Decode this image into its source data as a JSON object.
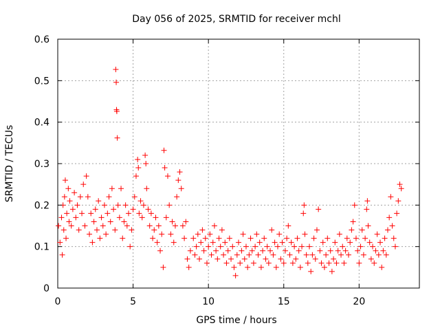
{
  "chart_data": {
    "type": "scatter",
    "title": "Day 056 of 2025, SRMTID for receiver mchl",
    "xlabel": "GPS time / hours",
    "ylabel": "SRMTID / TECUs",
    "xlim": [
      0,
      24
    ],
    "ylim": [
      0,
      0.6
    ],
    "x_ticks": [
      0,
      5,
      10,
      15,
      20
    ],
    "x_tick_labels": [
      "0",
      "5",
      "10",
      "15",
      "20"
    ],
    "y_ticks": [
      0,
      0.1,
      0.2,
      0.3,
      0.4,
      0.5,
      0.6
    ],
    "y_tick_labels": [
      "0",
      "0.1",
      "0.2",
      "0.3",
      "0.4",
      "0.5",
      "0.6"
    ],
    "grid": true,
    "marker": "+",
    "series": [
      {
        "name": "SRMTID",
        "color": "#ff0000",
        "points": [
          [
            0.05,
            0.15
          ],
          [
            0.15,
            0.11
          ],
          [
            0.25,
            0.17
          ],
          [
            0.3,
            0.08
          ],
          [
            0.35,
            0.2
          ],
          [
            0.4,
            0.14
          ],
          [
            0.45,
            0.22
          ],
          [
            0.5,
            0.26
          ],
          [
            0.55,
            0.12
          ],
          [
            0.6,
            0.18
          ],
          [
            0.7,
            0.24
          ],
          [
            0.75,
            0.16
          ],
          [
            0.8,
            0.21
          ],
          [
            0.9,
            0.15
          ],
          [
            1.0,
            0.19
          ],
          [
            1.1,
            0.23
          ],
          [
            1.2,
            0.17
          ],
          [
            1.3,
            0.2
          ],
          [
            1.4,
            0.14
          ],
          [
            1.5,
            0.22
          ],
          [
            1.6,
            0.18
          ],
          [
            1.7,
            0.25
          ],
          [
            1.8,
            0.15
          ],
          [
            1.9,
            0.27
          ],
          [
            2.0,
            0.22
          ],
          [
            2.1,
            0.13
          ],
          [
            2.2,
            0.18
          ],
          [
            2.3,
            0.11
          ],
          [
            2.4,
            0.16
          ],
          [
            2.5,
            0.19
          ],
          [
            2.6,
            0.14
          ],
          [
            2.7,
            0.21
          ],
          [
            2.8,
            0.12
          ],
          [
            2.9,
            0.17
          ],
          [
            3.0,
            0.15
          ],
          [
            3.1,
            0.2
          ],
          [
            3.2,
            0.13
          ],
          [
            3.3,
            0.18
          ],
          [
            3.4,
            0.22
          ],
          [
            3.5,
            0.16
          ],
          [
            3.6,
            0.24
          ],
          [
            3.7,
            0.19
          ],
          [
            3.8,
            0.14
          ],
          [
            3.85,
            0.527
          ],
          [
            3.88,
            0.496
          ],
          [
            3.9,
            0.43
          ],
          [
            3.92,
            0.426
          ],
          [
            3.95,
            0.362
          ],
          [
            4.0,
            0.2
          ],
          [
            4.1,
            0.17
          ],
          [
            4.2,
            0.24
          ],
          [
            4.3,
            0.12
          ],
          [
            4.4,
            0.16
          ],
          [
            4.5,
            0.2
          ],
          [
            4.6,
            0.15
          ],
          [
            4.7,
            0.18
          ],
          [
            4.8,
            0.1
          ],
          [
            4.9,
            0.14
          ],
          [
            5.0,
            0.19
          ],
          [
            5.1,
            0.22
          ],
          [
            5.2,
            0.27
          ],
          [
            5.3,
            0.31
          ],
          [
            5.35,
            0.29
          ],
          [
            5.4,
            0.18
          ],
          [
            5.5,
            0.21
          ],
          [
            5.6,
            0.17
          ],
          [
            5.7,
            0.2
          ],
          [
            5.8,
            0.32
          ],
          [
            5.85,
            0.3
          ],
          [
            5.9,
            0.24
          ],
          [
            6.0,
            0.19
          ],
          [
            6.1,
            0.15
          ],
          [
            6.2,
            0.18
          ],
          [
            6.3,
            0.12
          ],
          [
            6.4,
            0.14
          ],
          [
            6.5,
            0.17
          ],
          [
            6.6,
            0.11
          ],
          [
            6.7,
            0.15
          ],
          [
            6.8,
            0.09
          ],
          [
            6.9,
            0.13
          ],
          [
            7.0,
            0.05
          ],
          [
            7.05,
            0.332
          ],
          [
            7.1,
            0.29
          ],
          [
            7.2,
            0.17
          ],
          [
            7.3,
            0.27
          ],
          [
            7.4,
            0.2
          ],
          [
            7.5,
            0.13
          ],
          [
            7.6,
            0.16
          ],
          [
            7.7,
            0.11
          ],
          [
            7.8,
            0.15
          ],
          [
            7.9,
            0.22
          ],
          [
            8.0,
            0.26
          ],
          [
            8.1,
            0.28
          ],
          [
            8.2,
            0.24
          ],
          [
            8.3,
            0.15
          ],
          [
            8.4,
            0.12
          ],
          [
            8.5,
            0.16
          ],
          [
            8.6,
            0.07
          ],
          [
            8.7,
            0.05
          ],
          [
            8.8,
            0.09
          ],
          [
            9.0,
            0.12
          ],
          [
            9.1,
            0.08
          ],
          [
            9.2,
            0.1
          ],
          [
            9.3,
            0.13
          ],
          [
            9.4,
            0.07
          ],
          [
            9.5,
            0.11
          ],
          [
            9.6,
            0.14
          ],
          [
            9.7,
            0.09
          ],
          [
            9.8,
            0.12
          ],
          [
            9.9,
            0.06
          ],
          [
            10.0,
            0.1
          ],
          [
            10.1,
            0.13
          ],
          [
            10.2,
            0.08
          ],
          [
            10.3,
            0.11
          ],
          [
            10.4,
            0.15
          ],
          [
            10.5,
            0.09
          ],
          [
            10.6,
            0.07
          ],
          [
            10.7,
            0.12
          ],
          [
            10.8,
            0.1
          ],
          [
            10.9,
            0.14
          ],
          [
            11.0,
            0.08
          ],
          [
            11.1,
            0.11
          ],
          [
            11.2,
            0.06
          ],
          [
            11.3,
            0.09
          ],
          [
            11.4,
            0.12
          ],
          [
            11.5,
            0.07
          ],
          [
            11.6,
            0.1
          ],
          [
            11.7,
            0.05
          ],
          [
            11.8,
            0.03
          ],
          [
            11.9,
            0.08
          ],
          [
            12.0,
            0.11
          ],
          [
            12.1,
            0.06
          ],
          [
            12.2,
            0.09
          ],
          [
            12.3,
            0.13
          ],
          [
            12.4,
            0.07
          ],
          [
            12.5,
            0.1
          ],
          [
            12.6,
            0.05
          ],
          [
            12.7,
            0.08
          ],
          [
            12.8,
            0.12
          ],
          [
            12.9,
            0.09
          ],
          [
            13.0,
            0.06
          ],
          [
            13.1,
            0.1
          ],
          [
            13.2,
            0.13
          ],
          [
            13.3,
            0.08
          ],
          [
            13.4,
            0.11
          ],
          [
            13.5,
            0.05
          ],
          [
            13.6,
            0.09
          ],
          [
            13.7,
            0.12
          ],
          [
            13.8,
            0.07
          ],
          [
            13.9,
            0.1
          ],
          [
            14.0,
            0.06
          ],
          [
            14.1,
            0.09
          ],
          [
            14.2,
            0.14
          ],
          [
            14.3,
            0.08
          ],
          [
            14.4,
            0.11
          ],
          [
            14.5,
            0.05
          ],
          [
            14.6,
            0.1
          ],
          [
            14.7,
            0.13
          ],
          [
            14.8,
            0.07
          ],
          [
            14.9,
            0.11
          ],
          [
            15.0,
            0.06
          ],
          [
            15.1,
            0.09
          ],
          [
            15.2,
            0.12
          ],
          [
            15.3,
            0.15
          ],
          [
            15.4,
            0.08
          ],
          [
            15.5,
            0.11
          ],
          [
            15.6,
            0.06
          ],
          [
            15.7,
            0.1
          ],
          [
            15.8,
            0.07
          ],
          [
            15.9,
            0.12
          ],
          [
            16.0,
            0.09
          ],
          [
            16.1,
            0.05
          ],
          [
            16.2,
            0.1
          ],
          [
            16.3,
            0.18
          ],
          [
            16.35,
            0.2
          ],
          [
            16.4,
            0.13
          ],
          [
            16.5,
            0.08
          ],
          [
            16.6,
            0.06
          ],
          [
            16.7,
            0.1
          ],
          [
            16.8,
            0.04
          ],
          [
            16.9,
            0.08
          ],
          [
            17.0,
            0.12
          ],
          [
            17.1,
            0.07
          ],
          [
            17.2,
            0.14
          ],
          [
            17.3,
            0.19
          ],
          [
            17.4,
            0.09
          ],
          [
            17.5,
            0.06
          ],
          [
            17.6,
            0.11
          ],
          [
            17.7,
            0.05
          ],
          [
            17.8,
            0.08
          ],
          [
            17.9,
            0.12
          ],
          [
            18.0,
            0.06
          ],
          [
            18.1,
            0.09
          ],
          [
            18.2,
            0.04
          ],
          [
            18.3,
            0.07
          ],
          [
            18.4,
            0.11
          ],
          [
            18.5,
            0.06
          ],
          [
            18.6,
            0.09
          ],
          [
            18.7,
            0.13
          ],
          [
            18.8,
            0.08
          ],
          [
            18.9,
            0.1
          ],
          [
            19.0,
            0.06
          ],
          [
            19.1,
            0.09
          ],
          [
            19.2,
            0.12
          ],
          [
            19.3,
            0.08
          ],
          [
            19.4,
            0.11
          ],
          [
            19.5,
            0.14
          ],
          [
            19.6,
            0.16
          ],
          [
            19.7,
            0.2
          ],
          [
            19.8,
            0.12
          ],
          [
            19.9,
            0.09
          ],
          [
            20.0,
            0.06
          ],
          [
            20.1,
            0.1
          ],
          [
            20.2,
            0.14
          ],
          [
            20.3,
            0.08
          ],
          [
            20.4,
            0.12
          ],
          [
            20.5,
            0.19
          ],
          [
            20.55,
            0.21
          ],
          [
            20.6,
            0.15
          ],
          [
            20.7,
            0.11
          ],
          [
            20.8,
            0.07
          ],
          [
            20.9,
            0.1
          ],
          [
            21.0,
            0.06
          ],
          [
            21.1,
            0.09
          ],
          [
            21.2,
            0.13
          ],
          [
            21.3,
            0.08
          ],
          [
            21.4,
            0.11
          ],
          [
            21.5,
            0.05
          ],
          [
            21.6,
            0.09
          ],
          [
            21.7,
            0.12
          ],
          [
            21.8,
            0.08
          ],
          [
            21.9,
            0.14
          ],
          [
            22.0,
            0.17
          ],
          [
            22.1,
            0.22
          ],
          [
            22.2,
            0.15
          ],
          [
            22.3,
            0.12
          ],
          [
            22.4,
            0.1
          ],
          [
            22.5,
            0.18
          ],
          [
            22.6,
            0.21
          ],
          [
            22.7,
            0.25
          ],
          [
            22.8,
            0.24
          ]
        ]
      }
    ]
  }
}
